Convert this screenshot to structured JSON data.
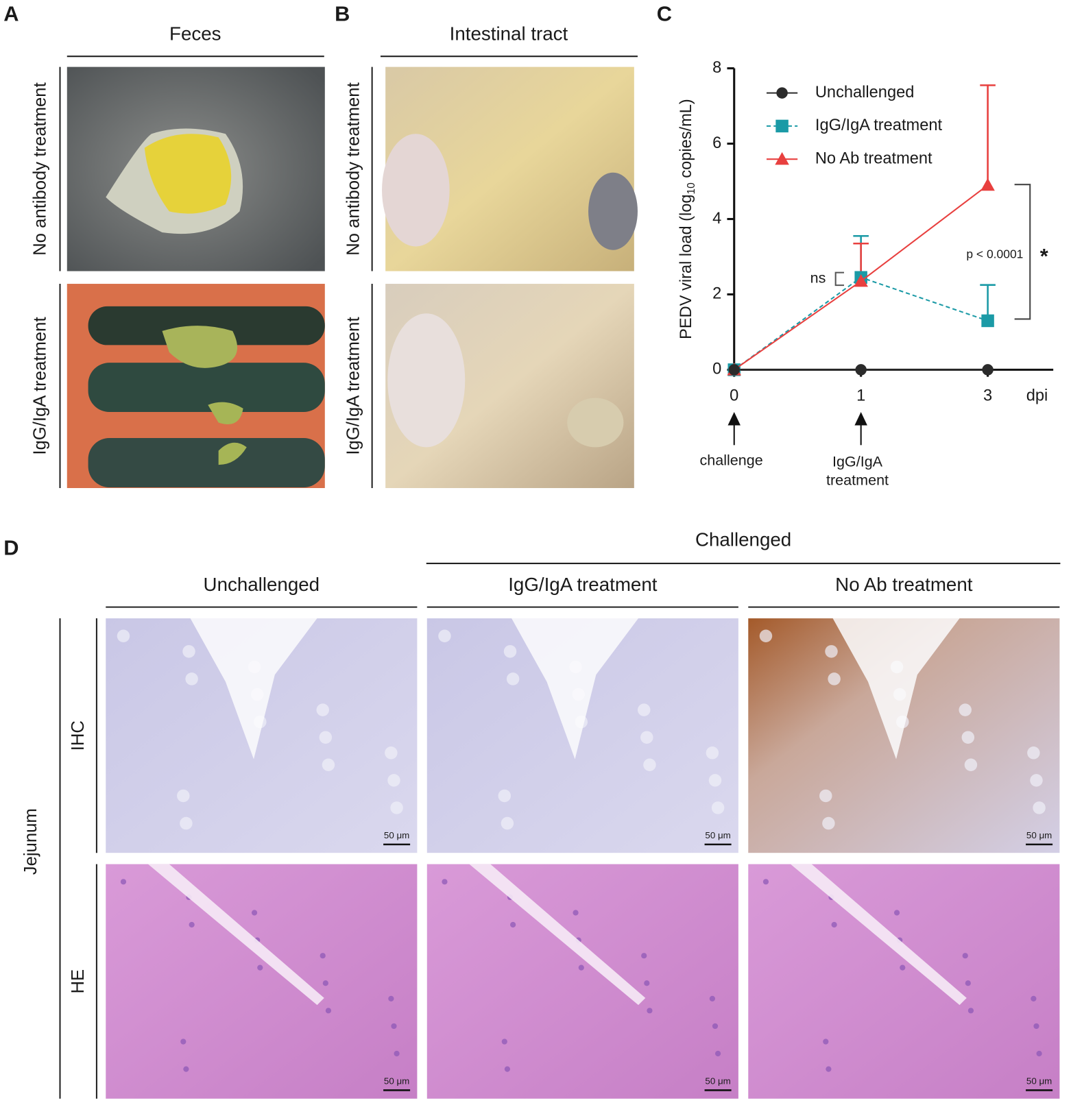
{
  "panel_a": {
    "label": "A",
    "title": "Feces",
    "rows": [
      "No antibody treatment",
      "IgG/IgA treatment"
    ]
  },
  "panel_b": {
    "label": "B",
    "title": "Intestinal tract",
    "rows": [
      "No antibody treatment",
      "IgG/IgA treatment"
    ]
  },
  "panel_c": {
    "label": "C"
  },
  "chart_data": {
    "type": "line",
    "ylabel": [
      "PEDV viral load (log",
      "10",
      " copies/mL)"
    ],
    "xlabel": "dpi",
    "categories": [
      "0",
      "1",
      "3"
    ],
    "ylim": [
      0,
      8
    ],
    "yticks": [
      0,
      2,
      4,
      6,
      8
    ],
    "legend": "top-left",
    "series": [
      {
        "name": "Unchallenged",
        "color": "#2b2b2b",
        "marker": "circle",
        "dash": false,
        "values": [
          0,
          0,
          0
        ]
      },
      {
        "name": "IgG/IgA treatment",
        "color": "#1b9aa6",
        "marker": "square",
        "dash": true,
        "values": [
          0,
          2.45,
          1.3
        ],
        "errors": [
          0,
          1.1,
          0.95
        ]
      },
      {
        "name": "No Ab treatment",
        "color": "#e8403f",
        "marker": "triangle",
        "dash": false,
        "values": [
          0,
          2.35,
          4.9
        ],
        "errors": [
          0,
          1.0,
          2.65
        ]
      }
    ],
    "annotations": {
      "ns": "ns",
      "p": "p < 0.0001",
      "star": "*",
      "challenge": "challenge",
      "treatment": [
        "IgG/IgA",
        "treatment"
      ]
    }
  },
  "panel_d": {
    "label": "D",
    "group": "Challenged",
    "columns": [
      "Unchallenged",
      "IgG/IgA treatment",
      "No Ab treatment"
    ],
    "rows": [
      "IHC",
      "HE"
    ],
    "tissue": "Jejunum",
    "scale_bar": "50 μm"
  }
}
